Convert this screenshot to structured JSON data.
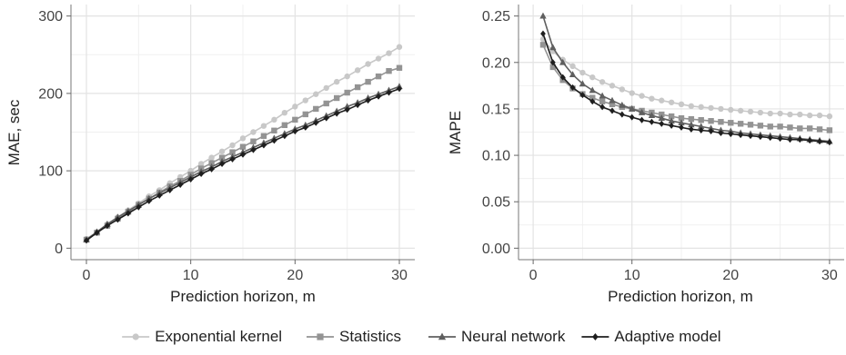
{
  "chart_data": [
    {
      "type": "line",
      "title": "",
      "xlabel": "Prediction horizon, m",
      "ylabel": "MAE, sec",
      "xlim": [
        0,
        30
      ],
      "ylim": [
        0,
        300
      ],
      "xticks": [
        "0",
        "10",
        "20",
        "30"
      ],
      "yticks": [
        "0",
        "100",
        "200",
        "300"
      ],
      "grid": true,
      "x": [
        0,
        1,
        2,
        3,
        4,
        5,
        6,
        7,
        8,
        9,
        10,
        11,
        12,
        13,
        14,
        15,
        16,
        17,
        18,
        19,
        20,
        21,
        22,
        23,
        24,
        25,
        26,
        27,
        28,
        29,
        30
      ],
      "series": [
        {
          "name": "Exponential kernel",
          "values": [
            12,
            21,
            31,
            40,
            49,
            58,
            67,
            75,
            84,
            92,
            100,
            109,
            117,
            125,
            133,
            142,
            150,
            158,
            166,
            175,
            183,
            191,
            199,
            207,
            215,
            222,
            230,
            238,
            245,
            252,
            260
          ]
        },
        {
          "name": "Statistics",
          "values": [
            11,
            20,
            29,
            38,
            47,
            56,
            64,
            72,
            80,
            87,
            95,
            103,
            110,
            117,
            124,
            131,
            138,
            145,
            152,
            159,
            166,
            173,
            180,
            187,
            194,
            201,
            208,
            215,
            222,
            229,
            233
          ]
        },
        {
          "name": "Neural network",
          "values": [
            11,
            21,
            31,
            40,
            48,
            56,
            64,
            71,
            78,
            85,
            92,
            99,
            105,
            112,
            118,
            124,
            130,
            136,
            142,
            148,
            154,
            159,
            165,
            171,
            177,
            183,
            188,
            194,
            199,
            204,
            209
          ]
        },
        {
          "name": "Adaptive model",
          "values": [
            10,
            20,
            29,
            37,
            45,
            53,
            61,
            68,
            75,
            82,
            89,
            96,
            102,
            109,
            115,
            121,
            127,
            133,
            139,
            145,
            151,
            156,
            162,
            168,
            174,
            179,
            185,
            191,
            196,
            201,
            206
          ]
        }
      ]
    },
    {
      "type": "line",
      "title": "",
      "xlabel": "Prediction horizon, m",
      "ylabel": "MAPE",
      "xlim": [
        0,
        30
      ],
      "ylim": [
        0,
        0.25
      ],
      "xticks": [
        "0",
        "10",
        "20",
        "30"
      ],
      "yticks": [
        "0.00",
        "0.05",
        "0.10",
        "0.15",
        "0.20",
        "0.25"
      ],
      "grid": true,
      "x": [
        1,
        2,
        3,
        4,
        5,
        6,
        7,
        8,
        9,
        10,
        11,
        12,
        13,
        14,
        15,
        16,
        17,
        18,
        19,
        20,
        21,
        22,
        23,
        24,
        25,
        26,
        27,
        28,
        29,
        30
      ],
      "series": [
        {
          "name": "Exponential kernel",
          "values": [
            0.225,
            0.212,
            0.203,
            0.196,
            0.189,
            0.184,
            0.179,
            0.175,
            0.171,
            0.167,
            0.164,
            0.161,
            0.159,
            0.157,
            0.155,
            0.153,
            0.152,
            0.151,
            0.15,
            0.149,
            0.148,
            0.147,
            0.146,
            0.145,
            0.145,
            0.144,
            0.144,
            0.143,
            0.143,
            0.142
          ]
        },
        {
          "name": "Statistics",
          "values": [
            0.219,
            0.195,
            0.181,
            0.172,
            0.166,
            0.162,
            0.158,
            0.155,
            0.152,
            0.15,
            0.148,
            0.146,
            0.144,
            0.142,
            0.14,
            0.139,
            0.138,
            0.137,
            0.136,
            0.135,
            0.134,
            0.133,
            0.132,
            0.131,
            0.131,
            0.13,
            0.129,
            0.129,
            0.128,
            0.127
          ]
        },
        {
          "name": "Neural network",
          "values": [
            0.25,
            0.216,
            0.2,
            0.187,
            0.177,
            0.17,
            0.164,
            0.159,
            0.154,
            0.15,
            0.146,
            0.143,
            0.14,
            0.137,
            0.135,
            0.133,
            0.131,
            0.129,
            0.127,
            0.126,
            0.124,
            0.123,
            0.122,
            0.121,
            0.12,
            0.119,
            0.118,
            0.117,
            0.116,
            0.115
          ]
        },
        {
          "name": "Adaptive model",
          "values": [
            0.231,
            0.2,
            0.184,
            0.173,
            0.165,
            0.158,
            0.152,
            0.148,
            0.144,
            0.141,
            0.138,
            0.136,
            0.134,
            0.132,
            0.13,
            0.128,
            0.127,
            0.126,
            0.124,
            0.123,
            0.122,
            0.121,
            0.12,
            0.119,
            0.118,
            0.117,
            0.117,
            0.116,
            0.115,
            0.114
          ]
        }
      ]
    }
  ],
  "legend": {
    "placement": "bottom",
    "items": [
      "Exponential kernel",
      "Statistics",
      "Neural network",
      "Adaptive model"
    ]
  },
  "series_styles": [
    {
      "name": "Exponential kernel",
      "color": "#c8c8c8",
      "marker": "circle"
    },
    {
      "name": "Statistics",
      "color": "#939393",
      "marker": "square"
    },
    {
      "name": "Neural network",
      "color": "#5f5f5f",
      "marker": "triangle"
    },
    {
      "name": "Adaptive model",
      "color": "#1e1e1e",
      "marker": "diamond"
    }
  ]
}
